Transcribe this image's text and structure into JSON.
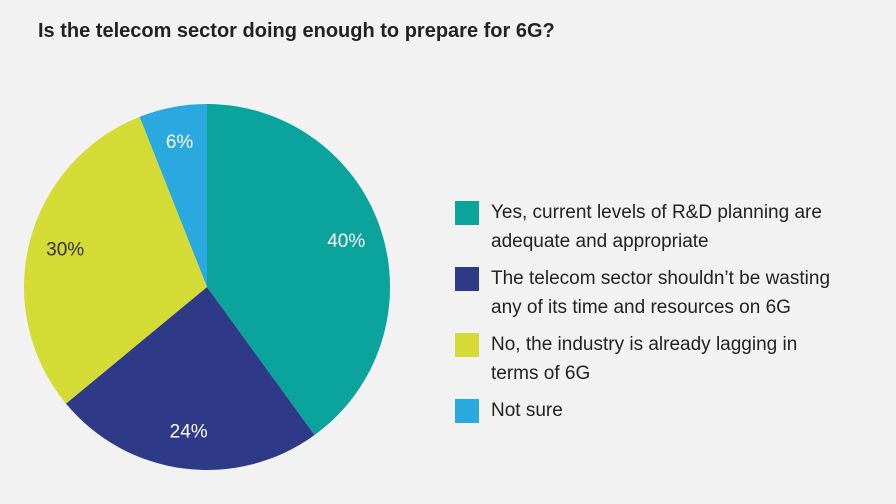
{
  "chart_data": {
    "type": "pie",
    "title": "Is the telecom sector doing enough to prepare for 6G?",
    "categories": [
      "Yes, current levels of R&D planning are adequate and appropriate",
      "The telecom sector shouldn’t be wasting any of its time and resources on 6G",
      "No, the industry is already lagging in terms of 6G",
      "Not sure"
    ],
    "values": [
      40,
      24,
      30,
      6
    ],
    "value_labels": [
      "40%",
      "24%",
      "30%",
      "6%"
    ],
    "colors": [
      "#0aa49c",
      "#2e3a87",
      "#d4db35",
      "#2aa9e0"
    ]
  }
}
